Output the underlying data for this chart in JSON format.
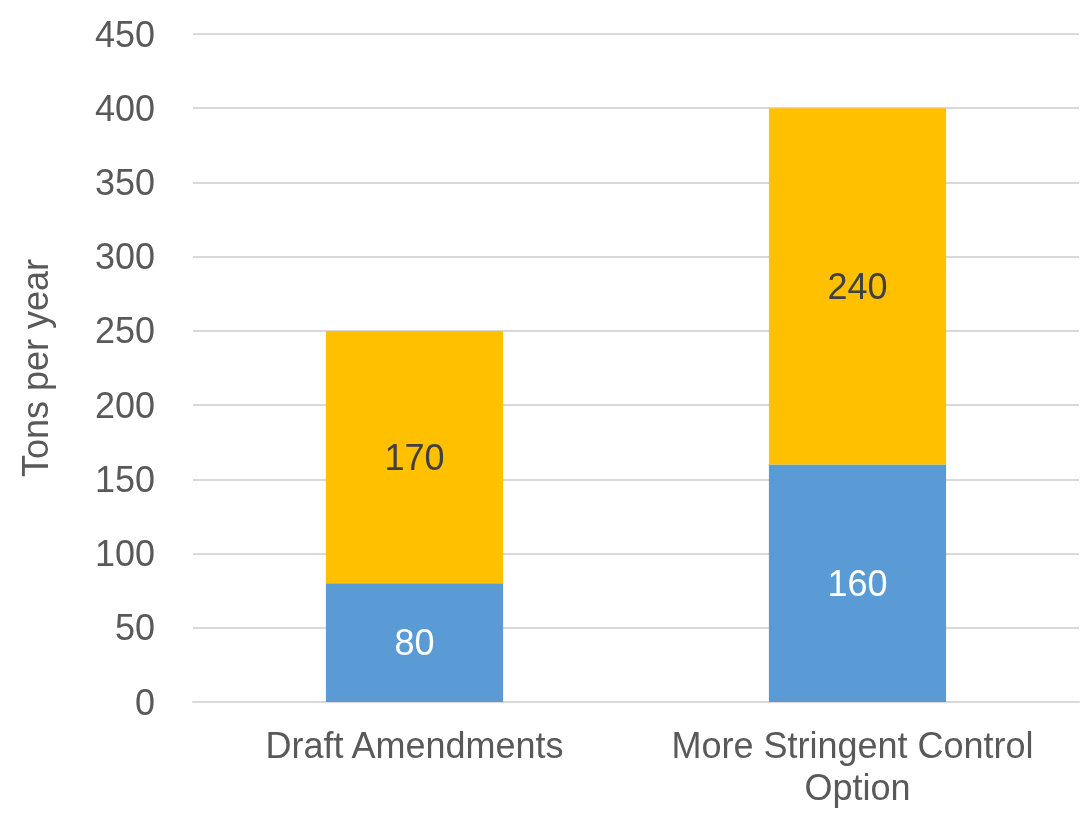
{
  "chart_data": {
    "type": "bar",
    "ylabel": "Tons per year",
    "categories": [
      "Draft Amendments",
      "More Stringent Control Option"
    ],
    "stacked": true,
    "data_labels": true,
    "grid": "y",
    "series": [
      {
        "color": "#5b9bd5",
        "values": [
          80,
          160
        ]
      },
      {
        "color": "#ffc000",
        "values": [
          170,
          240
        ]
      }
    ],
    "ylim": [
      0,
      450
    ],
    "yticks": [
      0,
      50,
      100,
      150,
      200,
      250,
      300,
      350,
      400,
      450
    ]
  }
}
